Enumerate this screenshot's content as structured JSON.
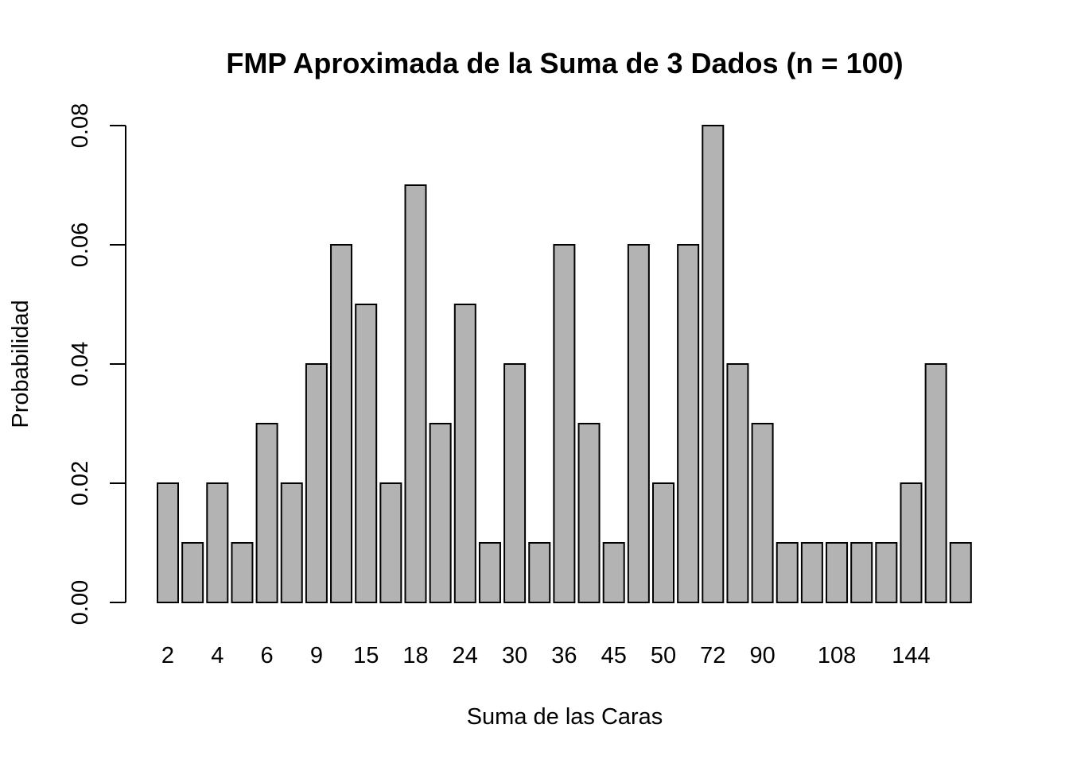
{
  "chart_data": {
    "type": "bar",
    "title": "FMP Aproximada de la Suma de 3 Dados (n = 100)",
    "xlabel": "Suma de las Caras",
    "ylabel": "Probabilidad",
    "ylim": [
      0,
      0.08
    ],
    "yticks": [
      "0.00",
      "0.02",
      "0.04",
      "0.06",
      "0.08"
    ],
    "bar_count": 33,
    "values": [
      0.02,
      0.01,
      0.02,
      0.01,
      0.03,
      0.02,
      0.04,
      0.06,
      0.05,
      0.02,
      0.07,
      0.03,
      0.05,
      0.01,
      0.04,
      0.01,
      0.06,
      0.03,
      0.01,
      0.06,
      0.02,
      0.06,
      0.08,
      0.04,
      0.03,
      0.01,
      0.01,
      0.01,
      0.01,
      0.01,
      0.02,
      0.04,
      0.01
    ],
    "category_labels": [
      {
        "bar": 0,
        "label": "2"
      },
      {
        "bar": 2,
        "label": "4"
      },
      {
        "bar": 4,
        "label": "6"
      },
      {
        "bar": 6,
        "label": "9"
      },
      {
        "bar": 8,
        "label": "15"
      },
      {
        "bar": 10,
        "label": "18"
      },
      {
        "bar": 12,
        "label": "24"
      },
      {
        "bar": 14,
        "label": "30"
      },
      {
        "bar": 16,
        "label": "36"
      },
      {
        "bar": 18,
        "label": "45"
      },
      {
        "bar": 20,
        "label": "50"
      },
      {
        "bar": 22,
        "label": "72"
      },
      {
        "bar": 24,
        "label": "90"
      },
      {
        "bar": 27,
        "label": "108"
      },
      {
        "bar": 30,
        "label": "144"
      }
    ],
    "bar_color": "#b3b3b3",
    "grid": false,
    "legend": "none"
  }
}
